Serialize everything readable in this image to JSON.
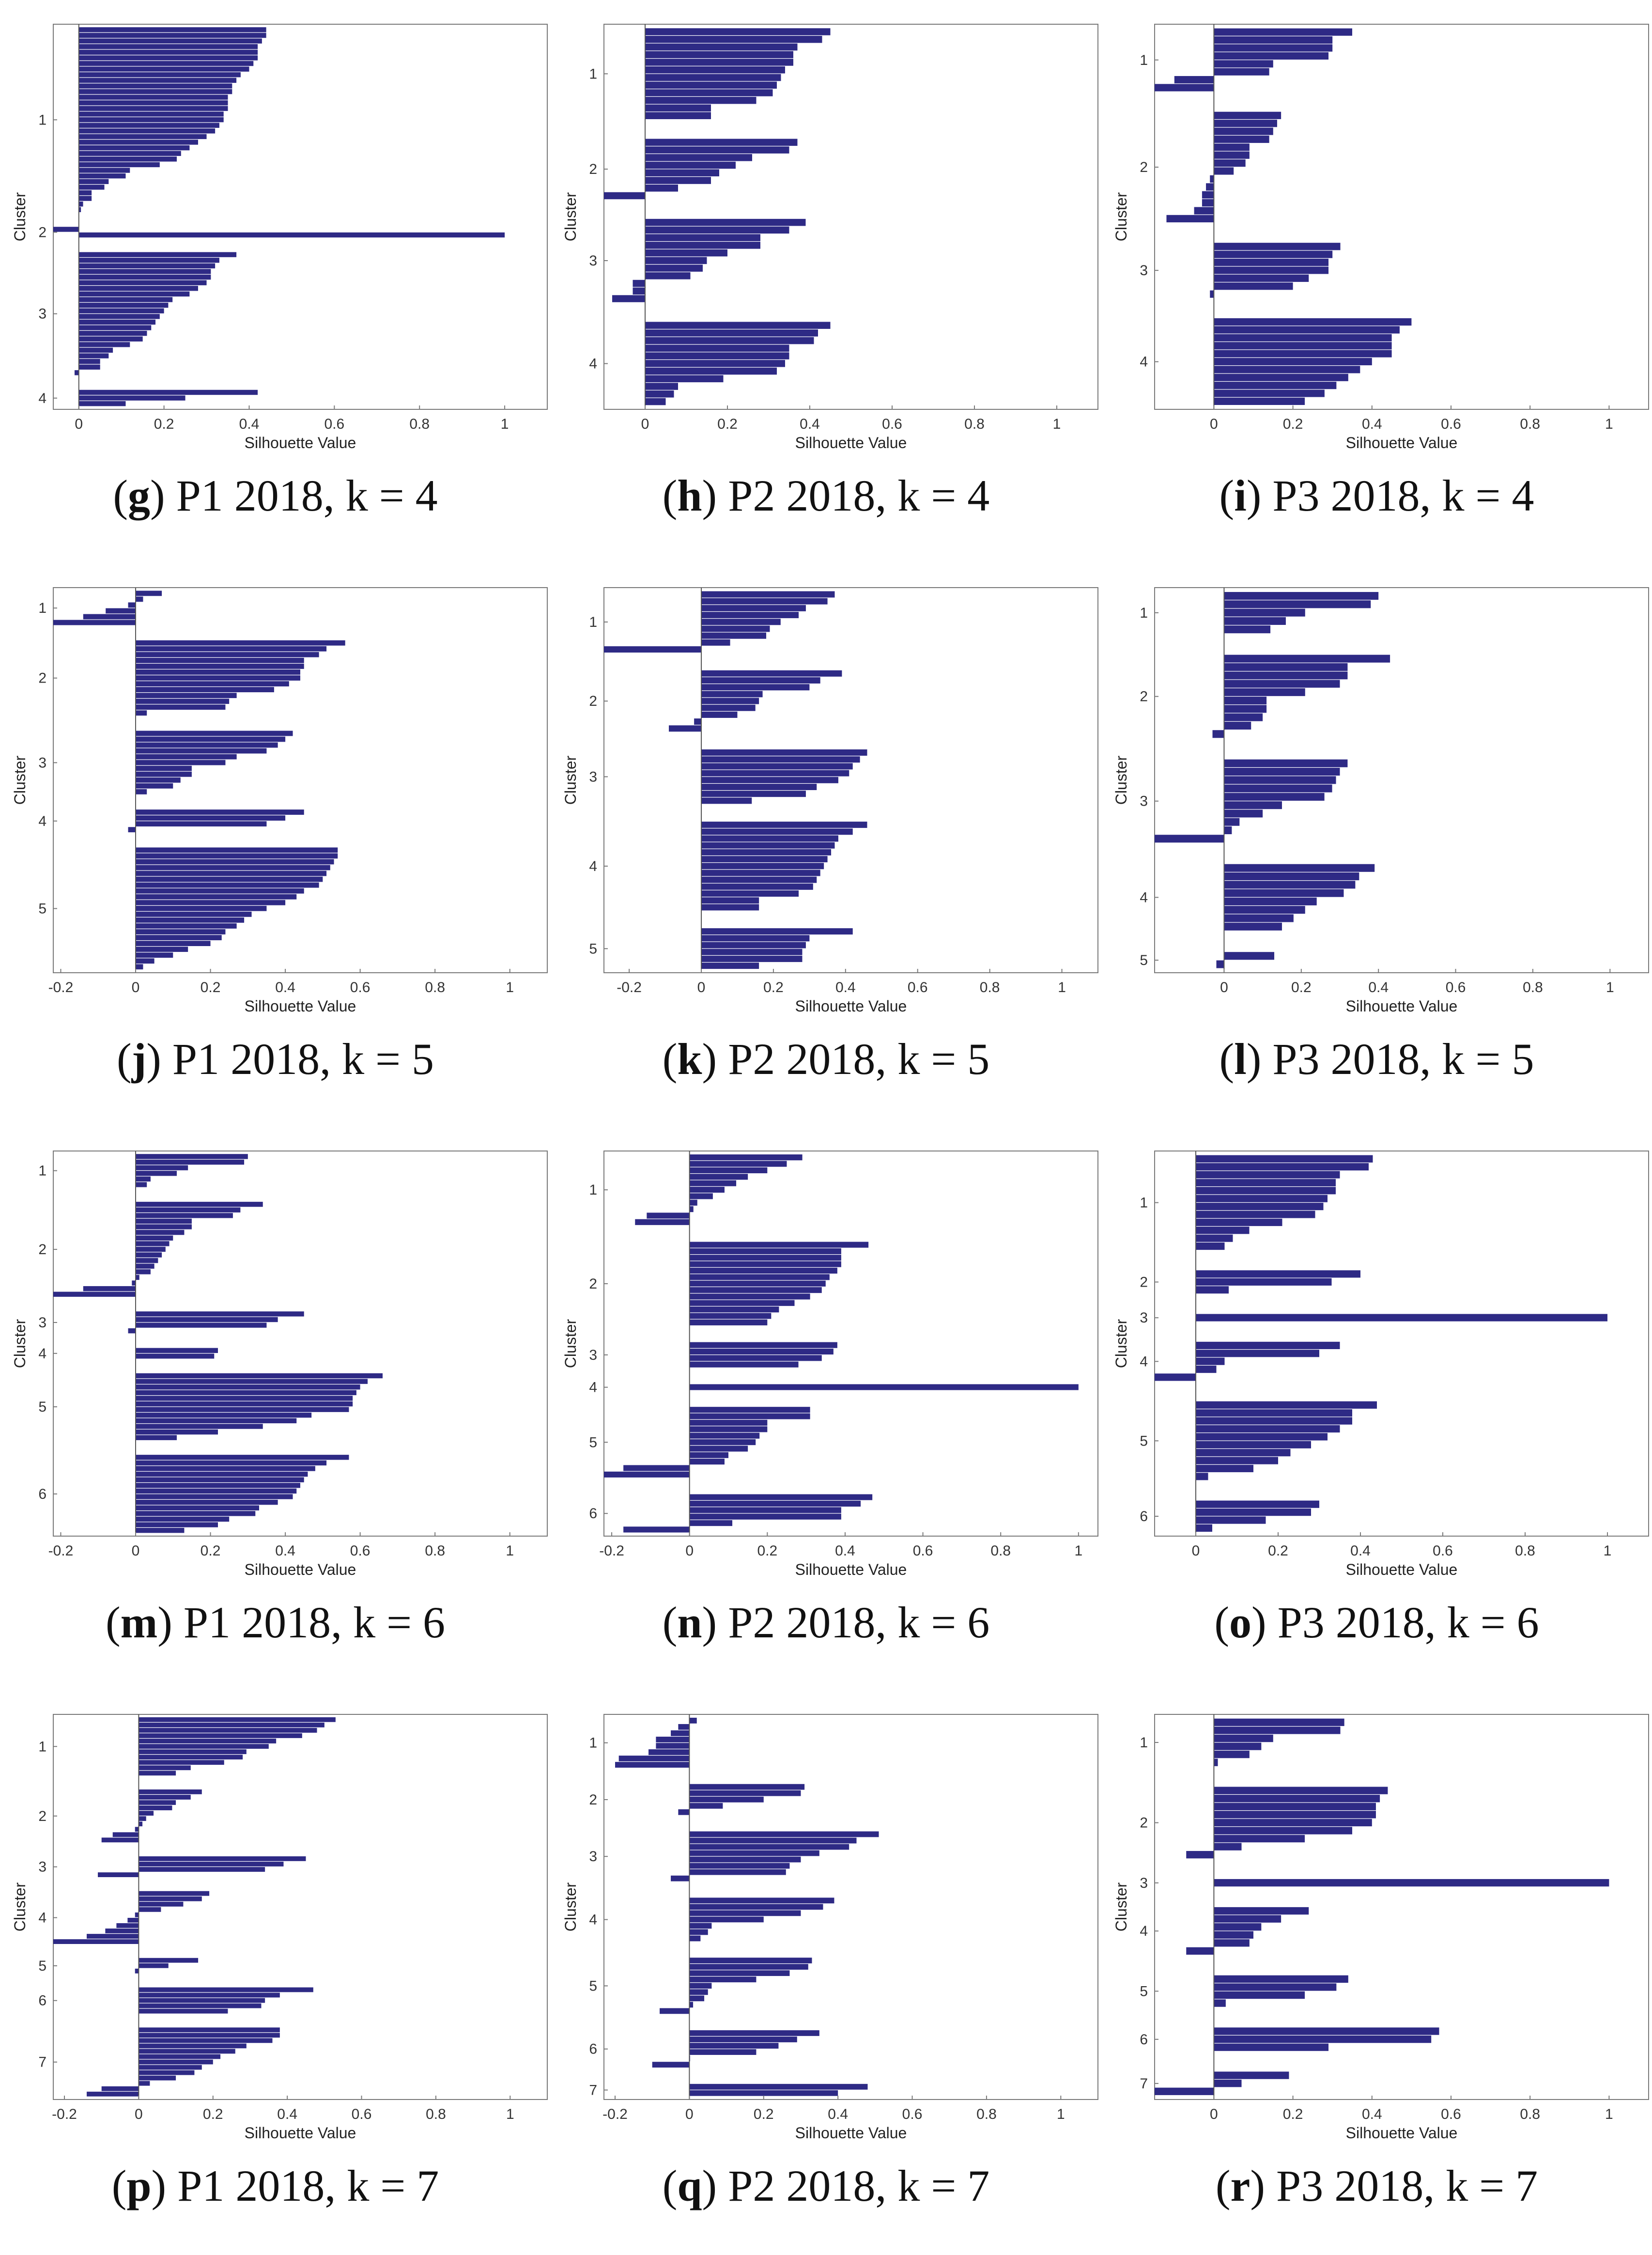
{
  "figure": {
    "bar_color": "#2e2a85",
    "axis_color": "#7a7a7a",
    "zero_line_color": "#555555"
  },
  "chart_data": [
    {
      "id": "g",
      "type": "bar",
      "orientation": "horizontal",
      "xlabel": "Silhouette Value",
      "ylabel": "Cluster",
      "xlim": [
        -0.06,
        1.1
      ],
      "xticks": [
        0,
        0.2,
        0.4,
        0.6,
        0.8,
        1
      ],
      "caption_letter": "g",
      "caption_text": " P1 2018, k = 4",
      "clusters": [
        {
          "label": "1",
          "values": [
            0.44,
            0.44,
            0.43,
            0.42,
            0.42,
            0.42,
            0.41,
            0.4,
            0.38,
            0.37,
            0.36,
            0.36,
            0.35,
            0.35,
            0.35,
            0.34,
            0.34,
            0.33,
            0.32,
            0.3,
            0.28,
            0.26,
            0.24,
            0.23,
            0.19,
            0.12,
            0.11,
            0.07,
            0.06,
            0.03,
            0.03,
            0.01,
            0.005
          ]
        },
        {
          "label": "2",
          "values": [
            -0.06,
            1.0
          ]
        },
        {
          "label": "3",
          "values": [
            0.37,
            0.33,
            0.32,
            0.31,
            0.31,
            0.3,
            0.28,
            0.26,
            0.22,
            0.21,
            0.2,
            0.19,
            0.18,
            0.17,
            0.16,
            0.15,
            0.12,
            0.08,
            0.07,
            0.05,
            0.05,
            -0.01
          ]
        },
        {
          "label": "4",
          "values": [
            0.42,
            0.25,
            0.11
          ]
        }
      ]
    },
    {
      "id": "h",
      "type": "bar",
      "orientation": "horizontal",
      "xlabel": "Silhouette Value",
      "ylabel": "Cluster",
      "xlim": [
        -0.1,
        1.1
      ],
      "xticks": [
        0,
        0.2,
        0.4,
        0.6,
        0.8,
        1
      ],
      "caption_letter": "h",
      "caption_text": " P2 2018, k = 4",
      "clusters": [
        {
          "label": "1",
          "values": [
            0.45,
            0.43,
            0.37,
            0.36,
            0.36,
            0.34,
            0.33,
            0.32,
            0.31,
            0.27,
            0.16,
            0.16
          ]
        },
        {
          "label": "2",
          "values": [
            0.37,
            0.35,
            0.26,
            0.22,
            0.18,
            0.16,
            0.08,
            -0.1
          ]
        },
        {
          "label": "3",
          "values": [
            0.39,
            0.35,
            0.28,
            0.28,
            0.2,
            0.15,
            0.14,
            0.11,
            -0.03,
            -0.03,
            -0.08
          ]
        },
        {
          "label": "4",
          "values": [
            0.45,
            0.42,
            0.41,
            0.35,
            0.35,
            0.34,
            0.32,
            0.19,
            0.08,
            0.07,
            0.05
          ]
        }
      ]
    },
    {
      "id": "i",
      "type": "bar",
      "orientation": "horizontal",
      "xlabel": "Silhouette Value",
      "ylabel": "Cluster",
      "xlim": [
        -0.15,
        1.1
      ],
      "xticks": [
        0,
        0.2,
        0.4,
        0.6,
        0.8,
        1
      ],
      "caption_letter": "i",
      "caption_text": " P3 2018, k = 4",
      "clusters": [
        {
          "label": "1",
          "values": [
            0.35,
            0.3,
            0.3,
            0.29,
            0.15,
            0.14,
            -0.1,
            -0.15
          ]
        },
        {
          "label": "2",
          "values": [
            0.17,
            0.16,
            0.15,
            0.14,
            0.09,
            0.09,
            0.08,
            0.05,
            -0.01,
            -0.02,
            -0.03,
            -0.03,
            -0.05,
            -0.12
          ]
        },
        {
          "label": "3",
          "values": [
            0.32,
            0.3,
            0.29,
            0.29,
            0.24,
            0.2,
            -0.01
          ]
        },
        {
          "label": "4",
          "values": [
            0.5,
            0.47,
            0.45,
            0.45,
            0.45,
            0.4,
            0.37,
            0.34,
            0.31,
            0.28,
            0.23
          ]
        }
      ]
    },
    {
      "id": "j",
      "type": "bar",
      "orientation": "horizontal",
      "xlabel": "Silhouette Value",
      "ylabel": "Cluster",
      "xlim": [
        -0.22,
        1.1
      ],
      "xticks": [
        -0.2,
        0,
        0.2,
        0.4,
        0.6,
        0.8,
        1
      ],
      "caption_letter": "j",
      "caption_text": " P1 2018, k = 5",
      "clusters": [
        {
          "label": "1",
          "values": [
            0.07,
            0.02,
            -0.02,
            -0.08,
            -0.14,
            -0.22
          ]
        },
        {
          "label": "2",
          "values": [
            0.56,
            0.51,
            0.49,
            0.45,
            0.45,
            0.44,
            0.44,
            0.41,
            0.37,
            0.27,
            0.25,
            0.24,
            0.03
          ]
        },
        {
          "label": "3",
          "values": [
            0.42,
            0.4,
            0.38,
            0.35,
            0.27,
            0.24,
            0.15,
            0.15,
            0.12,
            0.1,
            0.03
          ]
        },
        {
          "label": "4",
          "values": [
            0.45,
            0.4,
            0.35,
            -0.02
          ]
        },
        {
          "label": "5",
          "values": [
            0.54,
            0.54,
            0.53,
            0.52,
            0.51,
            0.5,
            0.49,
            0.45,
            0.43,
            0.4,
            0.35,
            0.31,
            0.29,
            0.27,
            0.24,
            0.23,
            0.2,
            0.14,
            0.1,
            0.05,
            0.02
          ]
        }
      ]
    },
    {
      "id": "k",
      "type": "bar",
      "orientation": "horizontal",
      "xlabel": "Silhouette Value",
      "ylabel": "Cluster",
      "xlim": [
        -0.27,
        1.1
      ],
      "xticks": [
        -0.2,
        0,
        0.2,
        0.4,
        0.6,
        0.8,
        1
      ],
      "caption_letter": "k",
      "caption_text": " P2 2018, k = 5",
      "clusters": [
        {
          "label": "1",
          "values": [
            0.37,
            0.35,
            0.29,
            0.27,
            0.22,
            0.19,
            0.18,
            0.08,
            -0.27
          ]
        },
        {
          "label": "2",
          "values": [
            0.39,
            0.33,
            0.3,
            0.17,
            0.16,
            0.15,
            0.1,
            -0.02,
            -0.09
          ]
        },
        {
          "label": "3",
          "values": [
            0.46,
            0.44,
            0.42,
            0.41,
            0.38,
            0.32,
            0.29,
            0.14
          ]
        },
        {
          "label": "4",
          "values": [
            0.46,
            0.42,
            0.38,
            0.37,
            0.36,
            0.35,
            0.34,
            0.33,
            0.32,
            0.31,
            0.27,
            0.16,
            0.16
          ]
        },
        {
          "label": "5",
          "values": [
            0.42,
            0.3,
            0.29,
            0.28,
            0.28,
            0.16
          ]
        }
      ]
    },
    {
      "id": "l",
      "type": "bar",
      "orientation": "horizontal",
      "xlabel": "Silhouette Value",
      "ylabel": "Cluster",
      "xlim": [
        -0.18,
        1.1
      ],
      "xticks": [
        0,
        0.2,
        0.4,
        0.6,
        0.8,
        1
      ],
      "caption_letter": "l",
      "caption_text": " P3 2018, k = 5",
      "clusters": [
        {
          "label": "1",
          "values": [
            0.4,
            0.38,
            0.21,
            0.16,
            0.12
          ]
        },
        {
          "label": "2",
          "values": [
            0.43,
            0.32,
            0.32,
            0.3,
            0.21,
            0.11,
            0.11,
            0.1,
            0.07,
            -0.03
          ]
        },
        {
          "label": "3",
          "values": [
            0.32,
            0.3,
            0.29,
            0.28,
            0.26,
            0.15,
            0.1,
            0.04,
            0.02,
            -0.18
          ]
        },
        {
          "label": "4",
          "values": [
            0.39,
            0.35,
            0.34,
            0.31,
            0.24,
            0.21,
            0.18,
            0.15
          ]
        },
        {
          "label": "5",
          "values": [
            0.13,
            -0.02
          ]
        }
      ]
    },
    {
      "id": "m",
      "type": "bar",
      "orientation": "horizontal",
      "xlabel": "Silhouette Value",
      "ylabel": "Cluster",
      "xlim": [
        -0.22,
        1.1
      ],
      "xticks": [
        -0.2,
        0,
        0.2,
        0.4,
        0.6,
        0.8,
        1
      ],
      "caption_letter": "m",
      "caption_text": " P1 2018, k = 6",
      "clusters": [
        {
          "label": "1",
          "values": [
            0.3,
            0.29,
            0.14,
            0.11,
            0.04,
            0.03
          ]
        },
        {
          "label": "2",
          "values": [
            0.34,
            0.28,
            0.26,
            0.15,
            0.15,
            0.13,
            0.1,
            0.09,
            0.08,
            0.07,
            0.06,
            0.05,
            0.04,
            0.01,
            -0.01,
            -0.14,
            -0.22
          ]
        },
        {
          "label": "3",
          "values": [
            0.45,
            0.38,
            0.35,
            -0.02
          ]
        },
        {
          "label": "4",
          "values": [
            0.22,
            0.21
          ]
        },
        {
          "label": "5",
          "values": [
            0.66,
            0.62,
            0.6,
            0.59,
            0.58,
            0.58,
            0.57,
            0.47,
            0.43,
            0.34,
            0.22,
            0.11
          ]
        },
        {
          "label": "6",
          "values": [
            0.57,
            0.51,
            0.48,
            0.46,
            0.45,
            0.44,
            0.43,
            0.42,
            0.38,
            0.33,
            0.32,
            0.25,
            0.22,
            0.13
          ]
        }
      ]
    },
    {
      "id": "n",
      "type": "bar",
      "orientation": "horizontal",
      "xlabel": "Silhouette Value",
      "ylabel": "Cluster",
      "xlim": [
        -0.22,
        1.05
      ],
      "xticks": [
        -0.2,
        0,
        0.2,
        0.4,
        0.6,
        0.8,
        1
      ],
      "caption_letter": "n",
      "caption_text": " P2 2018, k = 6",
      "clusters": [
        {
          "label": "1",
          "values": [
            0.29,
            0.25,
            0.2,
            0.15,
            0.12,
            0.09,
            0.06,
            0.02,
            0.01,
            -0.11,
            -0.14
          ]
        },
        {
          "label": "2",
          "values": [
            0.46,
            0.39,
            0.39,
            0.39,
            0.38,
            0.36,
            0.35,
            0.34,
            0.31,
            0.27,
            0.23,
            0.21,
            0.2
          ]
        },
        {
          "label": "3",
          "values": [
            0.38,
            0.37,
            0.34,
            0.28
          ]
        },
        {
          "label": "4",
          "values": [
            1.0
          ]
        },
        {
          "label": "5",
          "values": [
            0.31,
            0.31,
            0.2,
            0.2,
            0.18,
            0.17,
            0.15,
            0.1,
            0.09,
            -0.17,
            -0.22
          ]
        },
        {
          "label": "6",
          "values": [
            0.47,
            0.44,
            0.39,
            0.39,
            0.11,
            -0.17
          ]
        }
      ]
    },
    {
      "id": "o",
      "type": "bar",
      "orientation": "horizontal",
      "xlabel": "Silhouette Value",
      "ylabel": "Cluster",
      "xlim": [
        -0.1,
        1.1
      ],
      "xticks": [
        0,
        0.2,
        0.4,
        0.6,
        0.8,
        1
      ],
      "caption_letter": "o",
      "caption_text": " P3 2018, k = 6",
      "clusters": [
        {
          "label": "1",
          "values": [
            0.43,
            0.42,
            0.35,
            0.34,
            0.34,
            0.32,
            0.31,
            0.29,
            0.21,
            0.13,
            0.09,
            0.07
          ]
        },
        {
          "label": "2",
          "values": [
            0.4,
            0.33,
            0.08
          ]
        },
        {
          "label": "3",
          "values": [
            1.0
          ]
        },
        {
          "label": "4",
          "values": [
            0.35,
            0.3,
            0.07,
            0.05,
            -0.1
          ]
        },
        {
          "label": "5",
          "values": [
            0.44,
            0.38,
            0.38,
            0.35,
            0.32,
            0.28,
            0.23,
            0.2,
            0.14,
            0.03
          ]
        },
        {
          "label": "6",
          "values": [
            0.3,
            0.28,
            0.17,
            0.04
          ]
        }
      ]
    },
    {
      "id": "p",
      "type": "bar",
      "orientation": "horizontal",
      "xlabel": "Silhouette Value",
      "ylabel": "Cluster",
      "xlim": [
        -0.23,
        1.1
      ],
      "xticks": [
        -0.2,
        0,
        0.2,
        0.4,
        0.6,
        0.8,
        1
      ],
      "caption_letter": "p",
      "caption_text": " P1 2018, k = 7",
      "clusters": [
        {
          "label": "1",
          "values": [
            0.53,
            0.5,
            0.48,
            0.44,
            0.37,
            0.35,
            0.29,
            0.28,
            0.23,
            0.14,
            0.1
          ]
        },
        {
          "label": "2",
          "values": [
            0.17,
            0.14,
            0.1,
            0.09,
            0.04,
            0.02,
            0.01,
            -0.01,
            -0.07,
            -0.1
          ]
        },
        {
          "label": "3",
          "values": [
            0.45,
            0.39,
            0.34,
            -0.11
          ]
        },
        {
          "label": "4",
          "values": [
            0.19,
            0.17,
            0.12,
            0.06,
            -0.01,
            -0.03,
            -0.06,
            -0.09,
            -0.14,
            -0.23
          ]
        },
        {
          "label": "5",
          "values": [
            0.16,
            0.08,
            -0.01
          ]
        },
        {
          "label": "6",
          "values": [
            0.47,
            0.38,
            0.34,
            0.33,
            0.24
          ]
        },
        {
          "label": "7",
          "values": [
            0.38,
            0.38,
            0.36,
            0.29,
            0.26,
            0.22,
            0.2,
            0.17,
            0.15,
            0.1,
            0.03,
            -0.1,
            -0.14
          ]
        }
      ]
    },
    {
      "id": "q",
      "type": "bar",
      "orientation": "horizontal",
      "xlabel": "Silhouette Value",
      "ylabel": "Cluster",
      "xlim": [
        -0.23,
        1.1
      ],
      "xticks": [
        -0.2,
        0,
        0.2,
        0.4,
        0.6,
        0.8,
        1
      ],
      "caption_letter": "q",
      "caption_text": " P2 2018, k = 7",
      "clusters": [
        {
          "label": "1",
          "values": [
            0.02,
            -0.03,
            -0.05,
            -0.09,
            -0.09,
            -0.11,
            -0.19,
            -0.2
          ]
        },
        {
          "label": "2",
          "values": [
            0.31,
            0.3,
            0.2,
            0.09,
            -0.03
          ]
        },
        {
          "label": "3",
          "values": [
            0.51,
            0.45,
            0.43,
            0.35,
            0.3,
            0.27,
            0.26,
            -0.05
          ]
        },
        {
          "label": "4",
          "values": [
            0.39,
            0.36,
            0.3,
            0.2,
            0.06,
            0.05,
            0.03
          ]
        },
        {
          "label": "5",
          "values": [
            0.33,
            0.32,
            0.27,
            0.18,
            0.06,
            0.05,
            0.04,
            0.01,
            -0.08
          ]
        },
        {
          "label": "6",
          "values": [
            0.35,
            0.29,
            0.24,
            0.18,
            0.0,
            -0.1
          ]
        },
        {
          "label": "7",
          "values": [
            0.48,
            0.4
          ]
        }
      ]
    },
    {
      "id": "r",
      "type": "bar",
      "orientation": "horizontal",
      "xlabel": "Silhouette Value",
      "ylabel": "Cluster",
      "xlim": [
        -0.15,
        1.1
      ],
      "xticks": [
        0,
        0.2,
        0.4,
        0.6,
        0.8,
        1
      ],
      "caption_letter": "r",
      "caption_text": " P3 2018, k = 7",
      "clusters": [
        {
          "label": "1",
          "values": [
            0.33,
            0.32,
            0.15,
            0.12,
            0.09,
            0.01
          ]
        },
        {
          "label": "2",
          "values": [
            0.44,
            0.42,
            0.41,
            0.41,
            0.4,
            0.35,
            0.23,
            0.07,
            -0.07
          ]
        },
        {
          "label": "3",
          "values": [
            1.0
          ]
        },
        {
          "label": "4",
          "values": [
            0.24,
            0.17,
            0.12,
            0.1,
            0.09,
            -0.07
          ]
        },
        {
          "label": "5",
          "values": [
            0.34,
            0.31,
            0.23,
            0.03
          ]
        },
        {
          "label": "6",
          "values": [
            0.57,
            0.55,
            0.29
          ]
        },
        {
          "label": "7",
          "values": [
            0.19,
            0.07,
            -0.15
          ]
        }
      ]
    }
  ]
}
